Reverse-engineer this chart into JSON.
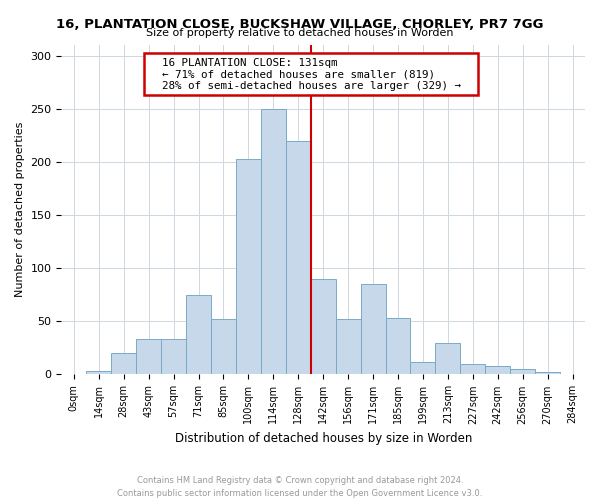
{
  "title": "16, PLANTATION CLOSE, BUCKSHAW VILLAGE, CHORLEY, PR7 7GG",
  "subtitle": "Size of property relative to detached houses in Worden",
  "xlabel": "Distribution of detached houses by size in Worden",
  "ylabel": "Number of detached properties",
  "footer": "Contains HM Land Registry data © Crown copyright and database right 2024.\nContains public sector information licensed under the Open Government Licence v3.0.",
  "bin_labels": [
    "0sqm",
    "14sqm",
    "28sqm",
    "43sqm",
    "57sqm",
    "71sqm",
    "85sqm",
    "100sqm",
    "114sqm",
    "128sqm",
    "142sqm",
    "156sqm",
    "171sqm",
    "185sqm",
    "199sqm",
    "213sqm",
    "227sqm",
    "242sqm",
    "256sqm",
    "270sqm",
    "284sqm"
  ],
  "bar_heights": [
    0,
    3,
    20,
    33,
    33,
    75,
    52,
    203,
    250,
    220,
    90,
    52,
    85,
    53,
    12,
    30,
    10,
    8,
    5,
    2,
    0
  ],
  "bar_color": "#c8d8eb",
  "bar_edge_color": "#7aaac8",
  "vline_color": "#cc0000",
  "vline_x": 9.5,
  "annotation_title": "16 PLANTATION CLOSE: 131sqm",
  "annotation_line1": "← 71% of detached houses are smaller (819)",
  "annotation_line2": "28% of semi-detached houses are larger (329) →",
  "annotation_box_color": "#ffffff",
  "annotation_box_edge": "#cc0000",
  "ylim": [
    0,
    310
  ],
  "yticks": [
    0,
    50,
    100,
    150,
    200,
    250,
    300
  ]
}
